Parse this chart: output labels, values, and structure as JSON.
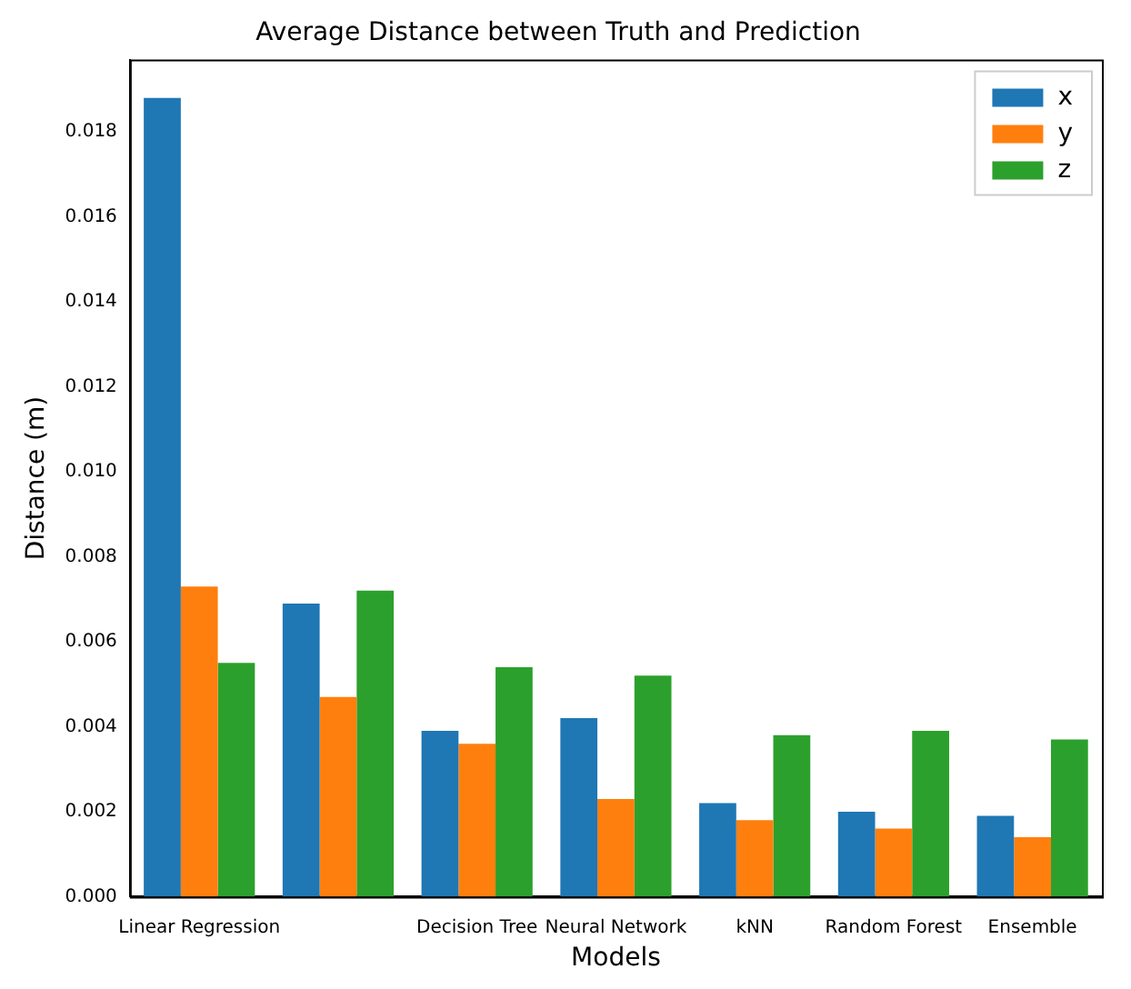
{
  "chart_data": {
    "type": "bar",
    "title": "Average Distance between Truth and Prediction",
    "xlabel": "Models",
    "ylabel": "Distance (m)",
    "categories": [
      "Linear Regression",
      null,
      "Decision Tree",
      "Neural Network",
      "kNN",
      "Random Forest",
      "Ensemble"
    ],
    "series": [
      {
        "name": "x",
        "color": "#1f77b4",
        "values": [
          0.0188,
          0.0069,
          0.0039,
          0.0042,
          0.0022,
          0.002,
          0.0019
        ]
      },
      {
        "name": "y",
        "color": "#ff7f0e",
        "values": [
          0.0073,
          0.0047,
          0.0036,
          0.0023,
          0.0018,
          0.0016,
          0.0014
        ]
      },
      {
        "name": "z",
        "color": "#2ca02c",
        "values": [
          0.0055,
          0.0072,
          0.0054,
          0.0052,
          0.0038,
          0.0039,
          0.0037
        ]
      }
    ],
    "ylim": [
      0,
      0.0197
    ],
    "yticks": [
      {
        "value": 0,
        "label": "0.000"
      },
      {
        "value": 0.002,
        "label": "0.002"
      },
      {
        "value": 0.004,
        "label": "0.004"
      },
      {
        "value": 0.006,
        "label": "0.006"
      },
      {
        "value": 0.008,
        "label": "0.008"
      },
      {
        "value": 0.01,
        "label": "0.010"
      },
      {
        "value": 0.012,
        "label": "0.012"
      },
      {
        "value": 0.014,
        "label": "0.014"
      },
      {
        "value": 0.016,
        "label": "0.016"
      },
      {
        "value": 0.018,
        "label": "0.018"
      }
    ],
    "grid": false,
    "legend": "top right"
  }
}
